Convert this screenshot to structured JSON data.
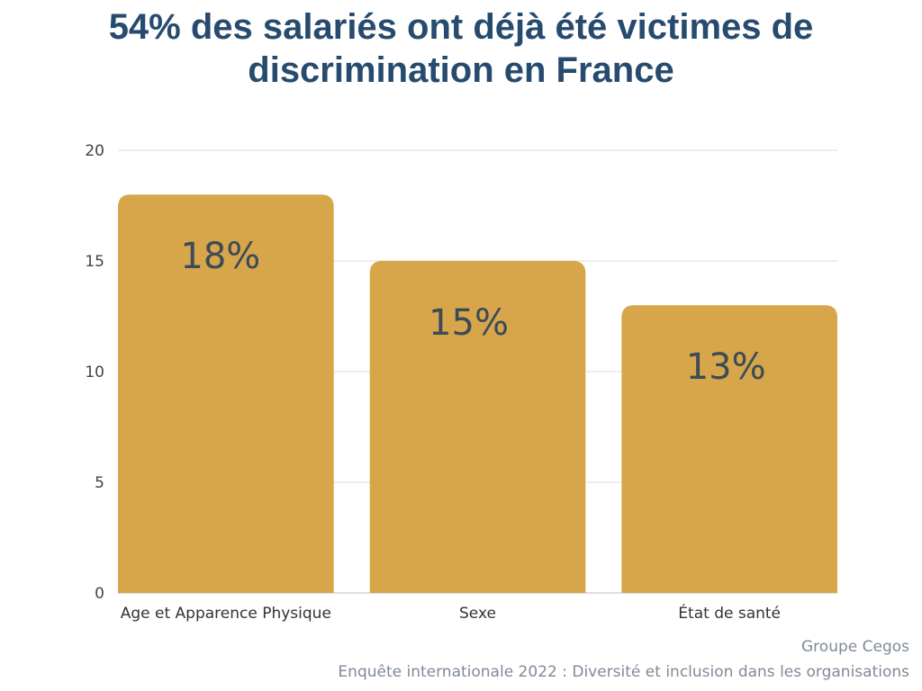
{
  "chart_data": {
    "type": "bar",
    "title": [
      "54% des salariés ont déjà été victimes de",
      "discrimination en France"
    ],
    "categories": [
      "Age et Apparence Physique",
      "Sexe",
      "État de santé"
    ],
    "values": [
      18,
      15,
      13
    ],
    "value_labels": [
      "18%",
      "15%",
      "13%"
    ],
    "xlabel": "",
    "ylabel": "",
    "ylim": [
      0,
      20
    ],
    "yticks": [
      0,
      5,
      10,
      15,
      20
    ],
    "grid": true,
    "bar_color": "#d7a64b",
    "title_color": "#274b6e"
  },
  "source": {
    "line1": "Groupe Cegos",
    "line2": "Enquête internationale 2022 : Diversité et inclusion dans les organisations"
  }
}
